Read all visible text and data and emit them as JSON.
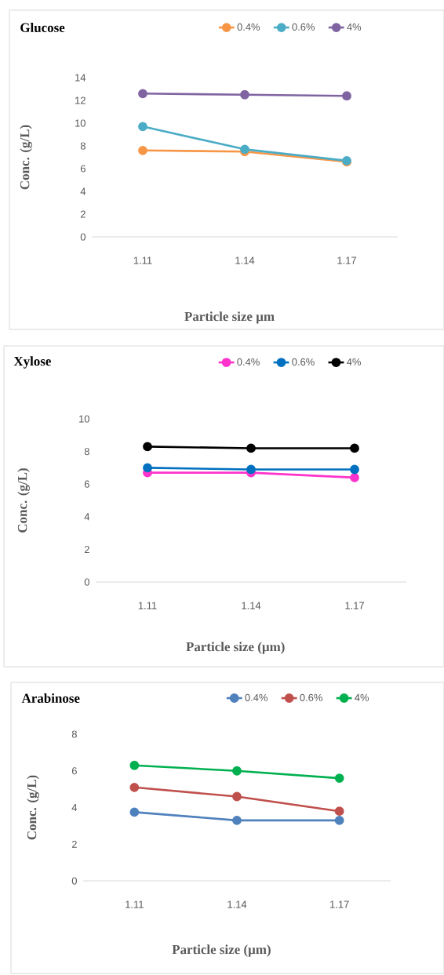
{
  "chart_data": [
    {
      "type": "line",
      "title": "Glucose",
      "xlabel": "Particle size µm",
      "ylabel": "Conc. (g/L)",
      "categories": [
        "1.11",
        "1.14",
        "1.17"
      ],
      "ylim": [
        0,
        14
      ],
      "yticks": [
        0,
        2,
        4,
        6,
        8,
        10,
        12,
        14
      ],
      "legend": "top",
      "marker": "circle",
      "series": [
        {
          "name": "0.4%",
          "color": "#f79646",
          "values": [
            7.6,
            7.5,
            6.6
          ]
        },
        {
          "name": "0.6%",
          "color": "#4bacc6",
          "values": [
            9.7,
            7.7,
            6.7
          ]
        },
        {
          "name": "4%",
          "color": "#8064a2",
          "values": [
            12.6,
            12.5,
            12.4
          ]
        }
      ]
    },
    {
      "type": "line",
      "title": "Xylose",
      "xlabel": "Particle size (µm)",
      "ylabel": "Conc. (g/L)",
      "categories": [
        "1.11",
        "1.14",
        "1.17"
      ],
      "ylim": [
        0,
        10
      ],
      "yticks": [
        0,
        2,
        4,
        6,
        8,
        10
      ],
      "legend": "top",
      "marker": "circle",
      "series": [
        {
          "name": "0.4%",
          "color": "#ff33cc",
          "values": [
            6.7,
            6.7,
            6.4
          ]
        },
        {
          "name": "0.6%",
          "color": "#0070c0",
          "values": [
            7.0,
            6.9,
            6.9
          ]
        },
        {
          "name": "4%",
          "color": "#000000",
          "values": [
            8.3,
            8.2,
            8.2
          ]
        }
      ]
    },
    {
      "type": "line",
      "title": "Arabinose",
      "xlabel": "Particle size (µm)",
      "ylabel": "Conc. (g/L)",
      "categories": [
        "1.11",
        "1.14",
        "1.17"
      ],
      "ylim": [
        0,
        8
      ],
      "yticks": [
        0,
        2,
        4,
        6,
        8
      ],
      "legend": "top",
      "marker": "circle",
      "series": [
        {
          "name": "0.4%",
          "color": "#4f81bd",
          "values": [
            3.75,
            3.3,
            3.3
          ]
        },
        {
          "name": "0.6%",
          "color": "#c0504d",
          "values": [
            5.1,
            4.6,
            3.8
          ]
        },
        {
          "name": "4%",
          "color": "#00b050",
          "values": [
            6.3,
            6.0,
            5.6
          ]
        }
      ]
    }
  ]
}
